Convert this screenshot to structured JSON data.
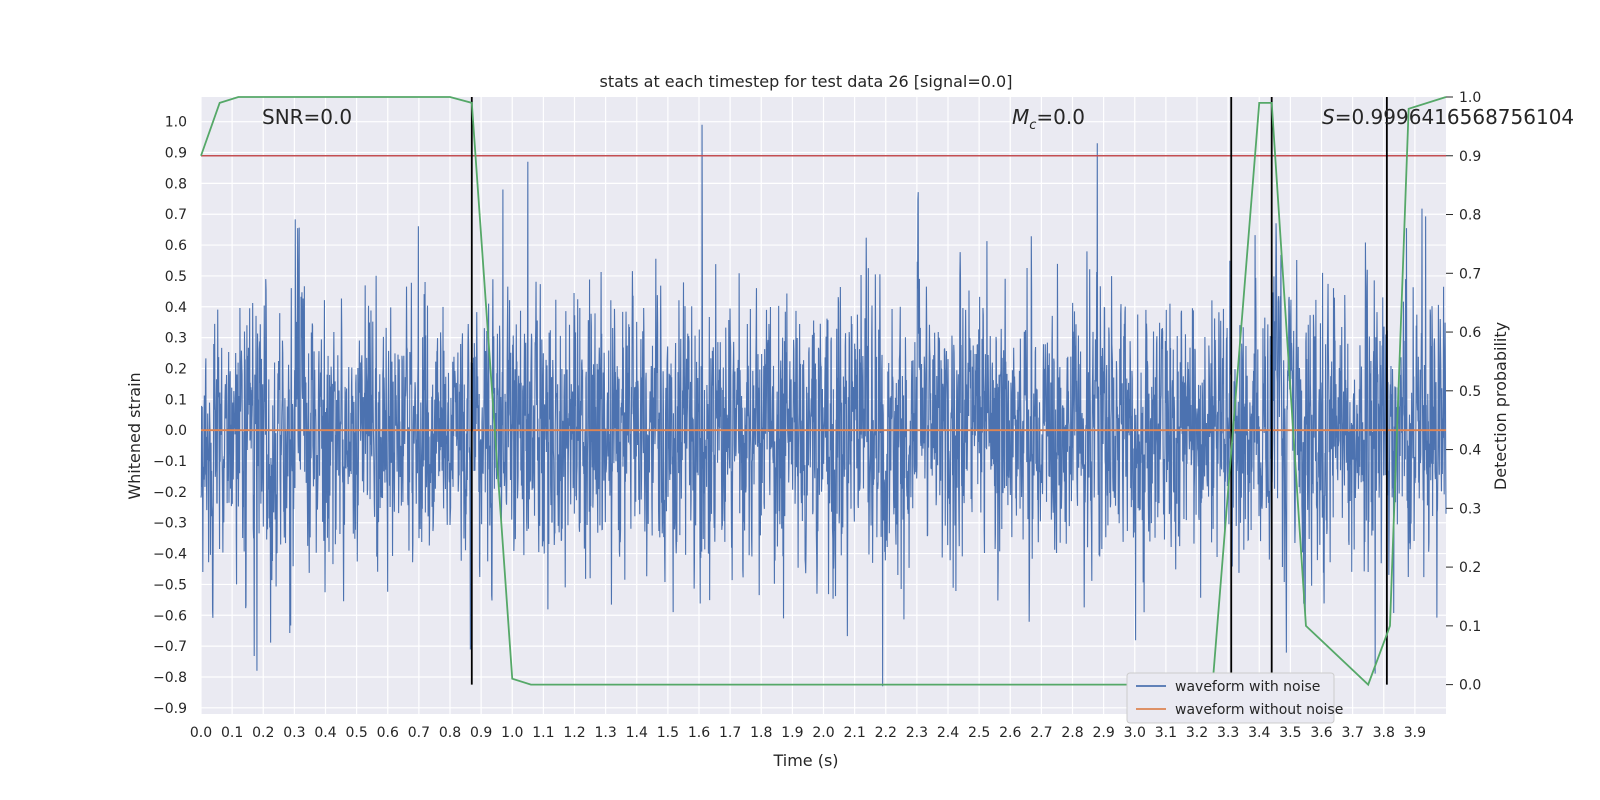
{
  "chart_data": {
    "type": "line",
    "title": "stats at each timestep for test data 26 [signal=0.0]",
    "xlabel": "Time (s)",
    "ylabel": "Whitened strain",
    "y2label": "Detection probability",
    "xlim": [
      0.0,
      4.0
    ],
    "ylim": [
      -0.92,
      1.08
    ],
    "y2lim": [
      -0.05,
      1.0
    ],
    "x_ticks": [
      "0.0",
      "0.1",
      "0.2",
      "0.3",
      "0.4",
      "0.5",
      "0.6",
      "0.7",
      "0.8",
      "0.9",
      "1.0",
      "1.1",
      "1.2",
      "1.3",
      "1.4",
      "1.5",
      "1.6",
      "1.7",
      "1.8",
      "1.9",
      "2.0",
      "2.1",
      "2.2",
      "2.3",
      "2.4",
      "2.5",
      "2.6",
      "2.7",
      "2.8",
      "2.9",
      "3.0",
      "3.1",
      "3.2",
      "3.3",
      "3.4",
      "3.5",
      "3.6",
      "3.7",
      "3.8",
      "3.9"
    ],
    "y_ticks": [
      "1.0",
      "0.9",
      "0.8",
      "0.7",
      "0.6",
      "0.5",
      "0.4",
      "0.3",
      "0.2",
      "0.1",
      "0.0",
      "−0.1",
      "−0.2",
      "−0.3",
      "−0.4",
      "−0.5",
      "−0.6",
      "−0.7",
      "−0.8",
      "−0.9"
    ],
    "y2_ticks": [
      "1.0",
      "0.9",
      "0.8",
      "0.7",
      "0.6",
      "0.5",
      "0.4",
      "0.3",
      "0.2",
      "0.1",
      "0.0"
    ],
    "annotations": {
      "snr": "SNR=0.0",
      "mc_prefix": "M",
      "mc_sub": "c",
      "mc_value": "=0.0",
      "s_prefix": "S",
      "s_value": "=0.9996416568756104"
    },
    "legend": {
      "location": "lower-right",
      "items": [
        "waveform with noise",
        "waveform without noise"
      ]
    },
    "colors": {
      "noise": "#4c72b0",
      "clean": "#dd8452",
      "probability": "#55a868",
      "threshold": "#c44e52",
      "markers": "#000000",
      "background": "#eaeaf2",
      "grid": "#ffffff"
    },
    "series": [
      {
        "name": "waveform with noise",
        "axis": "left",
        "note": "dense noise; approximate amplitude envelope ±0.5 with spikes",
        "spike_times": [
          0.18,
          0.97,
          1.05,
          1.61,
          2.19,
          2.88,
          3.81
        ],
        "spike_values": [
          -0.78,
          0.78,
          0.87,
          0.99,
          -0.83,
          0.93,
          0.89
        ]
      },
      {
        "name": "waveform without noise",
        "axis": "left",
        "x": [
          0.0,
          4.0
        ],
        "y": [
          0.0,
          0.0
        ]
      },
      {
        "name": "detection probability",
        "axis": "right",
        "x": [
          0.0,
          0.06,
          0.12,
          0.5,
          0.8,
          0.87,
          1.0,
          1.06,
          3.25,
          3.4,
          3.44,
          3.55,
          3.75,
          3.82,
          3.88,
          4.0
        ],
        "y": [
          0.9,
          0.99,
          1.0,
          1.0,
          1.0,
          0.99,
          0.01,
          0.0,
          0.0,
          0.99,
          0.99,
          0.1,
          0.0,
          0.1,
          0.98,
          1.0
        ]
      },
      {
        "name": "threshold",
        "axis": "right",
        "x": [
          0.0,
          4.0
        ],
        "y": [
          0.9,
          0.9
        ]
      }
    ],
    "vertical_markers": [
      0.87,
      3.31,
      3.44,
      3.81
    ]
  }
}
